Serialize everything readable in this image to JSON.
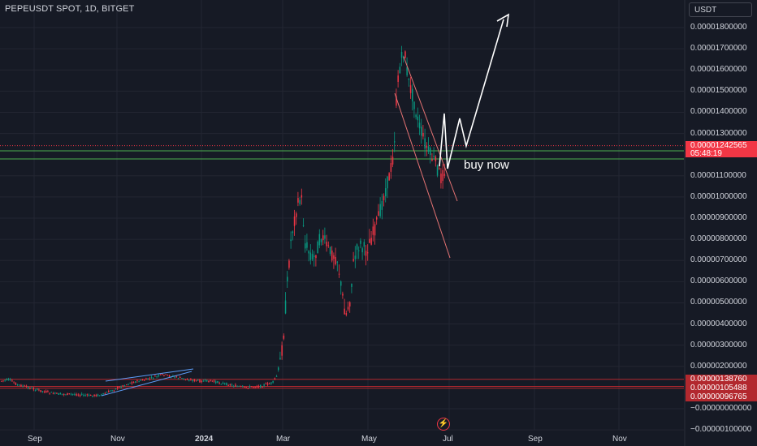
{
  "header": {
    "title": "PEPEUSDT SPOT, 1D, BITGET",
    "currency_button": "USDT"
  },
  "y_axis": {
    "labels": [
      "0.00001800000",
      "0.00001700000",
      "0.00001600000",
      "0.00001500000",
      "0.00001400000",
      "0.00001300000",
      "0.00001100000",
      "0.00001000000",
      "0.00000900000",
      "0.00000800000",
      "0.00000700000",
      "0.00000600000",
      "0.00000500000",
      "0.00000400000",
      "0.00000300000",
      "0.00000200000",
      "−0.00000000000",
      "−0.00000100000"
    ],
    "values": [
      1.8e-05,
      1.7e-05,
      1.6e-05,
      1.5e-05,
      1.4e-05,
      1.3e-05,
      1.1e-05,
      1e-05,
      9e-06,
      8e-06,
      7e-06,
      6e-06,
      5e-06,
      4e-06,
      3e-06,
      2e-06,
      0,
      -1e-06
    ]
  },
  "x_axis": {
    "labels": [
      "Sep",
      "Nov",
      "2024",
      "Mar",
      "May",
      "Jul",
      "Sep",
      "Nov"
    ],
    "bold": [
      false,
      false,
      true,
      false,
      false,
      false,
      false,
      false
    ]
  },
  "price_tags": [
    {
      "price": "0.00001242565",
      "countdown": "05:48:19",
      "value": 1.242565e-05,
      "color": "#f23645"
    },
    {
      "price": "0.00000138760",
      "value": 1.3876e-06,
      "color": "#b2282e"
    },
    {
      "price": "0.00000105488",
      "value": 1.05488e-06,
      "color": "#b2282e"
    },
    {
      "price": "0.00000096765",
      "value": 9.6765e-07,
      "color": "#b2282e"
    }
  ],
  "annotation": {
    "text": "buy now"
  },
  "colors": {
    "up": "#089981",
    "down": "#f23645",
    "bg": "#161a25",
    "grid": "#232632",
    "support_line": "#4caf50",
    "channel": "#e57373"
  },
  "icons": {
    "replay": "lightning-icon"
  }
}
